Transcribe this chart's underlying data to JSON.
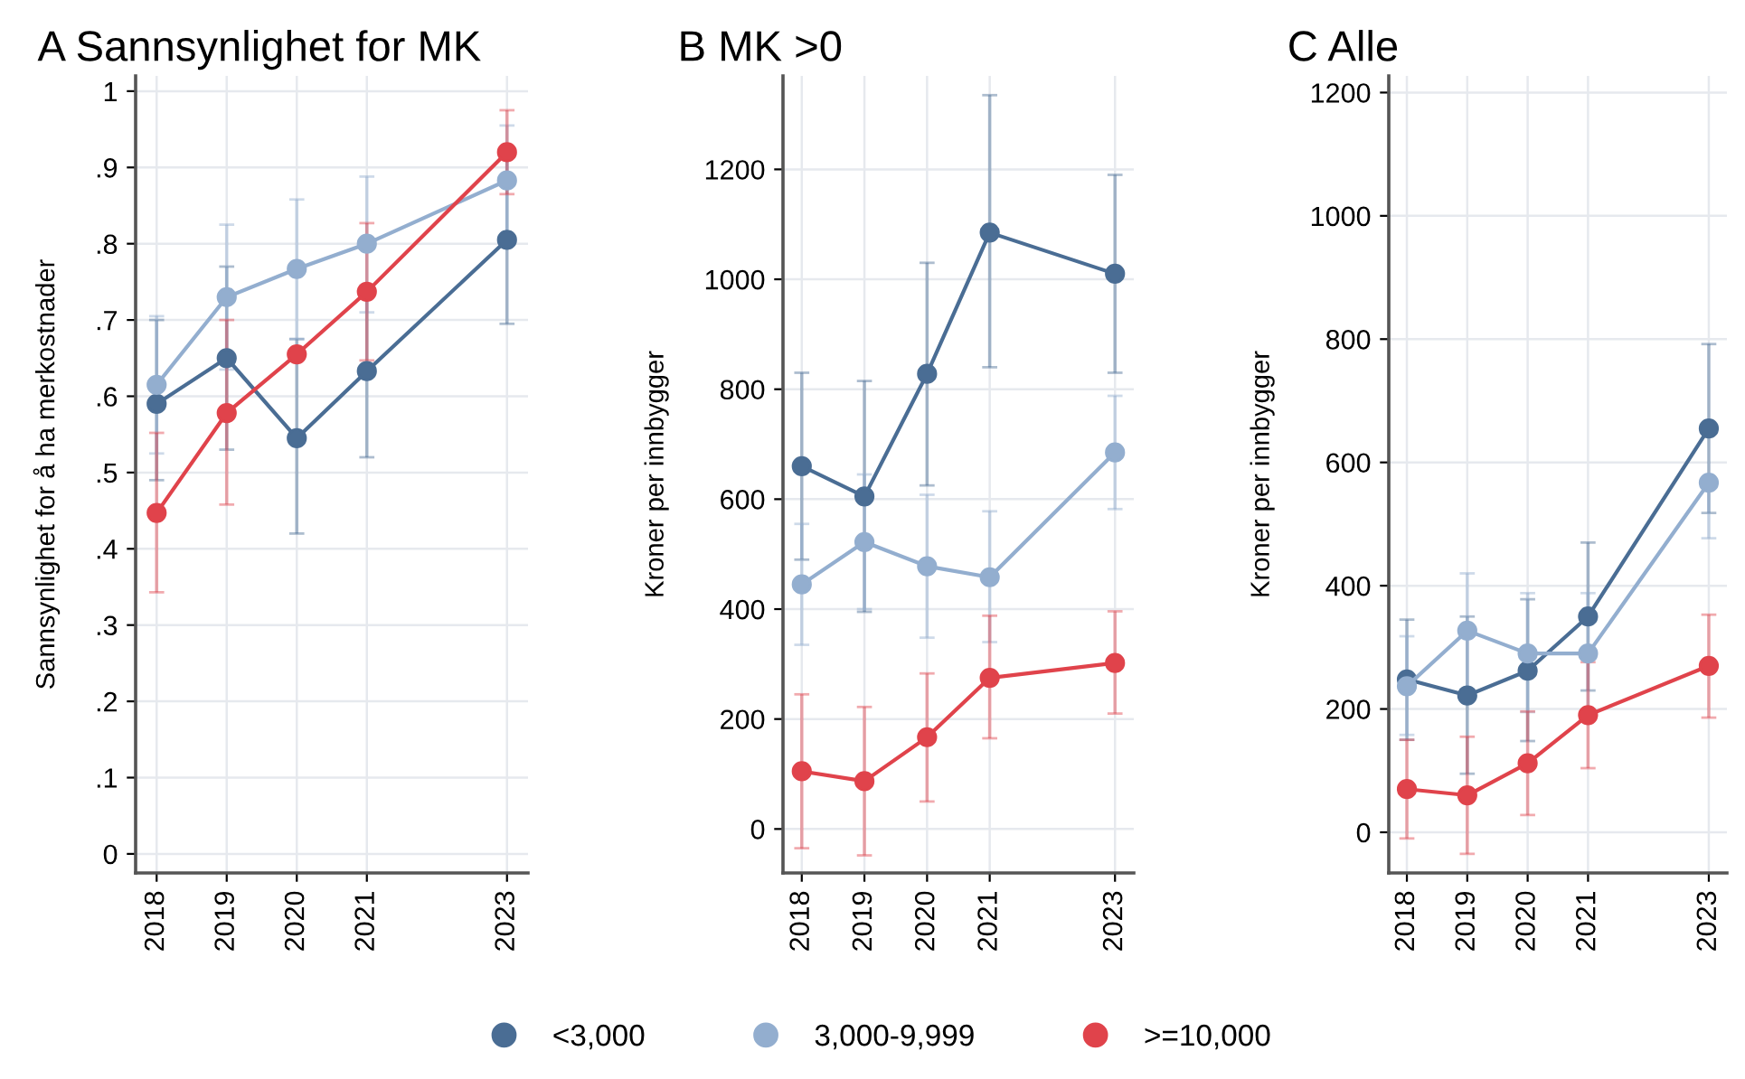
{
  "chart_data": [
    {
      "type": "line",
      "title": "A Sannsynlighet for MK",
      "ylabel": "Sannsynlighet for å ha merkostnader",
      "x": [
        2018,
        2019,
        2020,
        2021,
        2023
      ],
      "xlim": [
        2017.7,
        2023.3
      ],
      "xticks": [
        2018,
        2019,
        2020,
        2021,
        2023
      ],
      "ylim": [
        -0.025,
        1.02
      ],
      "yticks": [
        {
          "value": 0,
          "label": "0"
        },
        {
          "value": 0.1,
          "label": ".1"
        },
        {
          "value": 0.2,
          "label": ".2"
        },
        {
          "value": 0.3,
          "label": ".3"
        },
        {
          "value": 0.4,
          "label": ".4"
        },
        {
          "value": 0.5,
          "label": ".5"
        },
        {
          "value": 0.6,
          "label": ".6"
        },
        {
          "value": 0.7,
          "label": ".7"
        },
        {
          "value": 0.8,
          "label": ".8"
        },
        {
          "value": 0.9,
          "label": ".9"
        },
        {
          "value": 1,
          "label": "1"
        }
      ],
      "grid": true,
      "marker": "circle",
      "legend": "bottom",
      "series": [
        {
          "name": "<3,000",
          "color": "#4a6d94",
          "values": [
            0.59,
            0.65,
            0.545,
            0.633,
            0.805
          ],
          "errors": [
            [
              0.49,
              0.7
            ],
            [
              0.53,
              0.77
            ],
            [
              0.42,
              0.675
            ],
            [
              0.52,
              0.745
            ],
            [
              0.695,
              0.915
            ]
          ]
        },
        {
          "name": "3,000-9,999",
          "color": "#93aecf",
          "values": [
            0.615,
            0.73,
            0.767,
            0.8,
            0.883
          ],
          "errors": [
            [
              0.525,
              0.705
            ],
            [
              0.635,
              0.825
            ],
            [
              0.675,
              0.858
            ],
            [
              0.71,
              0.888
            ],
            [
              0.81,
              0.955
            ]
          ]
        },
        {
          "name": ">=10,000",
          "color": "#e0434b",
          "values": [
            0.447,
            0.578,
            0.655,
            0.737,
            0.92
          ],
          "errors": [
            [
              0.343,
              0.552
            ],
            [
              0.458,
              0.7
            ],
            null,
            [
              0.647,
              0.827
            ],
            [
              0.865,
              0.975
            ]
          ]
        }
      ]
    },
    {
      "type": "line",
      "title": "B MK >0",
      "ylabel": "Kroner per innbygger",
      "x": [
        2018,
        2019,
        2020,
        2021,
        2023
      ],
      "xlim": [
        2017.7,
        2023.3
      ],
      "xticks": [
        2018,
        2019,
        2020,
        2021,
        2023
      ],
      "ylim": [
        -80,
        1370
      ],
      "yticks": [
        0,
        200,
        400,
        600,
        800,
        1000,
        1200
      ],
      "grid": true,
      "marker": "circle",
      "series": [
        {
          "color": "#4a6d94",
          "values": [
            660,
            605,
            828,
            1085,
            1010
          ],
          "errors": [
            [
              490,
              830
            ],
            [
              395,
              815
            ],
            [
              625,
              1030
            ],
            [
              840,
              1335
            ],
            [
              830,
              1190
            ]
          ]
        },
        {
          "color": "#93aecf",
          "values": [
            445,
            522,
            478,
            458,
            685
          ],
          "errors": [
            [
              335,
              555
            ],
            [
              400,
              645
            ],
            [
              348,
              608
            ],
            [
              340,
              578
            ],
            [
              582,
              788
            ]
          ]
        },
        {
          "color": "#e0434b",
          "values": [
            105,
            87,
            167,
            275,
            302
          ],
          "errors": [
            [
              -35,
              245
            ],
            [
              -48,
              222
            ],
            [
              50,
              283
            ],
            [
              165,
              388
            ],
            [
              210,
              396
            ]
          ]
        }
      ]
    },
    {
      "type": "line",
      "title": "C Alle",
      "ylabel": "Kroner per innbygger",
      "x": [
        2018,
        2019,
        2020,
        2021,
        2023
      ],
      "xlim": [
        2017.7,
        2023.3
      ],
      "xticks": [
        2018,
        2019,
        2020,
        2021,
        2023
      ],
      "ylim": [
        -66,
        1227
      ],
      "yticks": [
        0,
        200,
        400,
        600,
        800,
        1000,
        1200
      ],
      "grid": true,
      "marker": "circle",
      "series": [
        {
          "color": "#4a6d94",
          "values": [
            248,
            222,
            262,
            350,
            655
          ],
          "errors": [
            [
              150,
              345
            ],
            [
              95,
              350
            ],
            [
              148,
              378
            ],
            [
              230,
              470
            ],
            [
              518,
              792
            ]
          ]
        },
        {
          "color": "#93aecf",
          "values": [
            237,
            327,
            290,
            290,
            567
          ],
          "errors": [
            [
              158,
              318
            ],
            [
              232,
              420
            ],
            [
              195,
              388
            ],
            [
              195,
              388
            ],
            [
              477,
              567
            ]
          ]
        },
        {
          "color": "#e0434b",
          "values": [
            70,
            60,
            112,
            190,
            270
          ],
          "errors": [
            [
              -10,
              150
            ],
            [
              -35,
              155
            ],
            [
              28,
              196
            ],
            [
              104,
              276
            ],
            [
              186,
              353
            ]
          ]
        }
      ]
    }
  ]
}
